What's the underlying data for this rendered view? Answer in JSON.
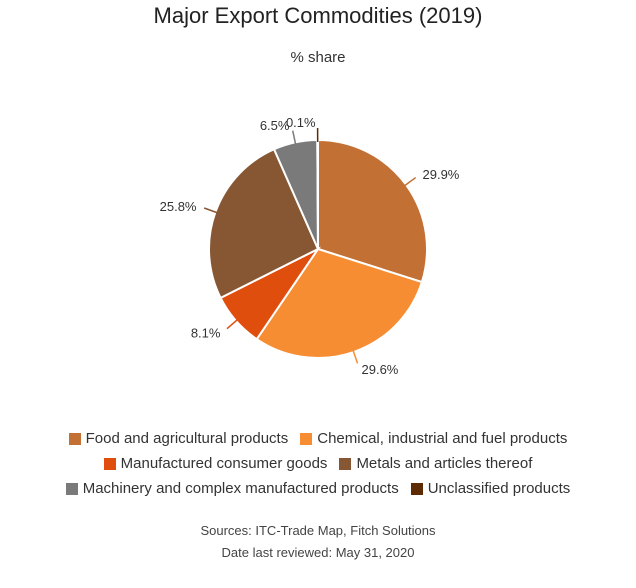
{
  "chart_data": {
    "type": "pie",
    "title": "Major Export Commodities (2019)",
    "subtitle": "% share",
    "slices": [
      {
        "label": "Food and agricultural products",
        "value": 29.9,
        "display": "29.9%",
        "color": "#c27034"
      },
      {
        "label": "Chemical, industrial and fuel products",
        "value": 29.6,
        "display": "29.6%",
        "color": "#f68d33"
      },
      {
        "label": "Manufactured consumer goods",
        "value": 8.1,
        "display": "8.1%",
        "color": "#e04e0e"
      },
      {
        "label": "Metals and articles thereof",
        "value": 25.8,
        "display": "25.8%",
        "color": "#875734"
      },
      {
        "label": "Machinery and complex manufactured products",
        "value": 6.5,
        "display": "6.5%",
        "color": "#7a7a7a"
      },
      {
        "label": "Unclassified products",
        "value": 0.1,
        "display": "0.1%",
        "color": "#5c2b04"
      }
    ],
    "legend_position": "bottom"
  },
  "sources": {
    "line1": "Sources: ITC-Trade Map, Fitch Solutions",
    "line2": "Date last reviewed: May 31, 2020"
  }
}
